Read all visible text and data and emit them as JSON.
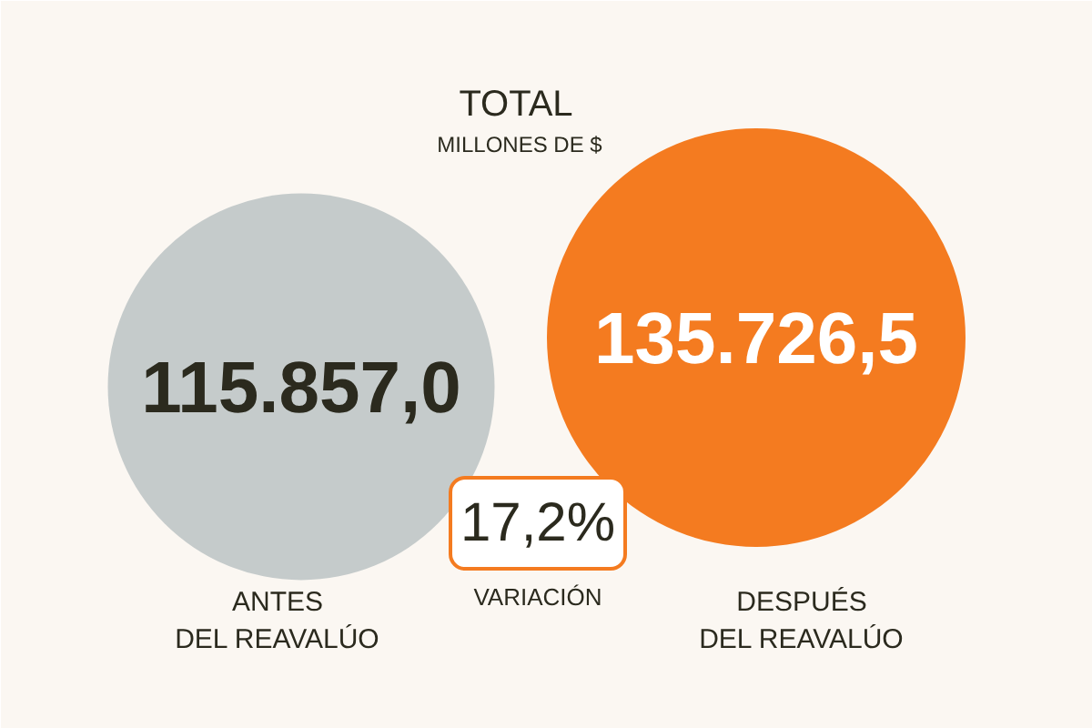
{
  "chart_data": {
    "type": "other",
    "title": "TOTAL",
    "subtitle": "MILLONES DE $",
    "categories": [
      "ANTES DEL REAVALÚO",
      "DESPUÉS DEL REAVALÚO"
    ],
    "values": [
      115857.0,
      135726.5
    ],
    "value_labels": [
      "115.857,0",
      "135.726,5"
    ],
    "colors": [
      "#c5cbcb",
      "#f47b20"
    ],
    "annotations": [
      "17,2%",
      "VARIACIÓN"
    ]
  }
}
